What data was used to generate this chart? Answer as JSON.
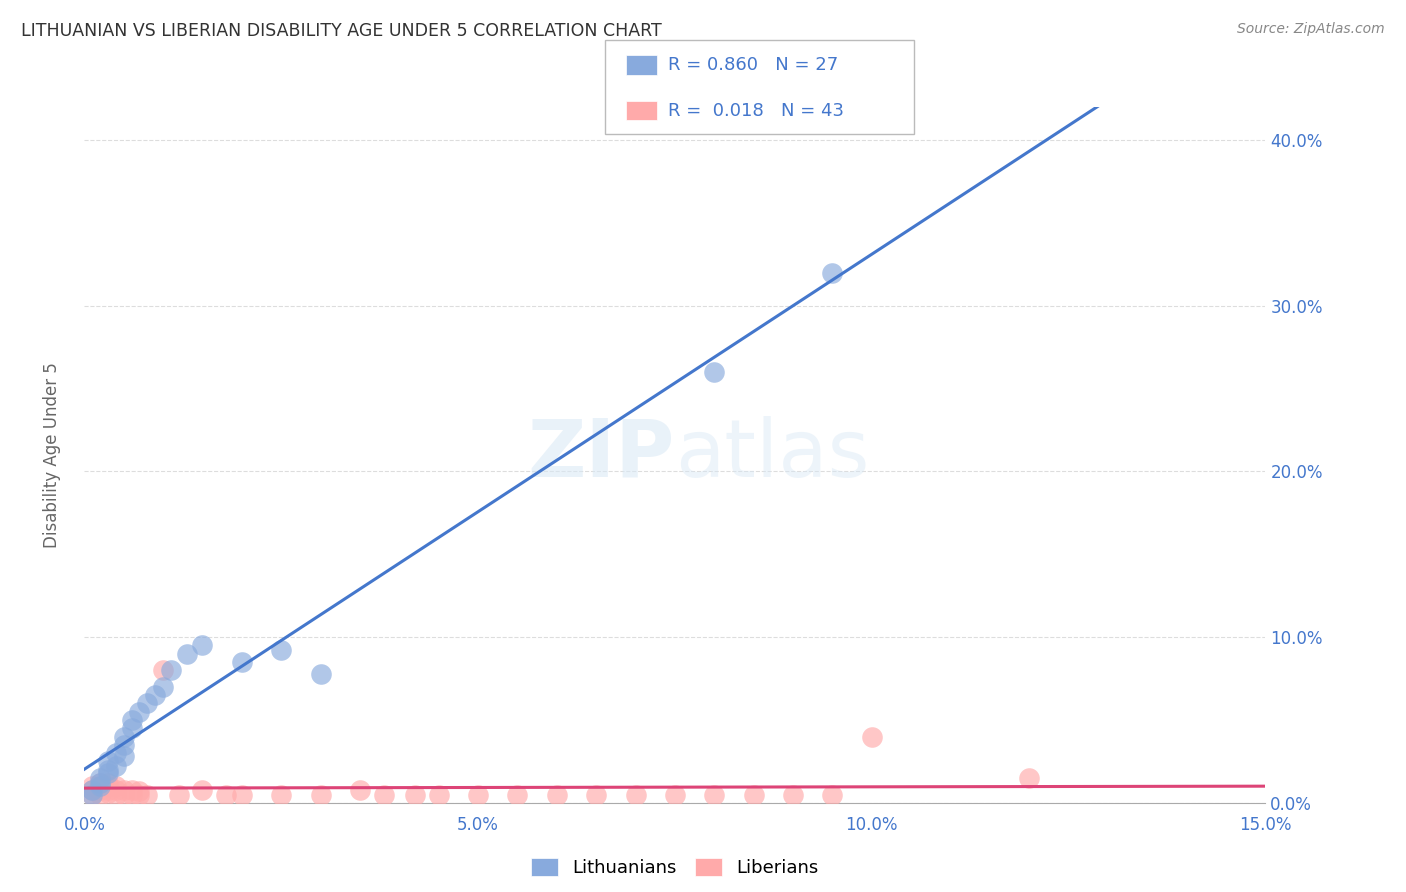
{
  "title": "LITHUANIAN VS LIBERIAN DISABILITY AGE UNDER 5 CORRELATION CHART",
  "source": "Source: ZipAtlas.com",
  "ylabel": "Disability Age Under 5",
  "xlim": [
    0.0,
    0.15
  ],
  "ylim": [
    0.0,
    0.42
  ],
  "background_color": "#ffffff",
  "grid_color": "#dddddd",
  "title_color": "#333333",
  "blue_color": "#88aadd",
  "pink_color": "#ffaaaa",
  "blue_line_color": "#4477cc",
  "pink_line_color": "#dd4477",
  "legend_r_blue": "0.860",
  "legend_n_blue": "27",
  "legend_r_pink": "0.018",
  "legend_n_pink": "43",
  "watermark": "ZIPatlas",
  "lit_x": [
    0.001,
    0.001,
    0.002,
    0.002,
    0.002,
    0.003,
    0.003,
    0.003,
    0.004,
    0.004,
    0.005,
    0.005,
    0.005,
    0.006,
    0.006,
    0.007,
    0.008,
    0.009,
    0.01,
    0.011,
    0.013,
    0.015,
    0.02,
    0.025,
    0.03,
    0.08,
    0.095
  ],
  "lit_y": [
    0.005,
    0.008,
    0.01,
    0.012,
    0.015,
    0.018,
    0.02,
    0.025,
    0.022,
    0.03,
    0.028,
    0.035,
    0.04,
    0.045,
    0.05,
    0.055,
    0.06,
    0.065,
    0.07,
    0.08,
    0.09,
    0.095,
    0.085,
    0.092,
    0.078,
    0.26,
    0.32
  ],
  "lib_x": [
    0.001,
    0.001,
    0.001,
    0.002,
    0.002,
    0.002,
    0.003,
    0.003,
    0.003,
    0.003,
    0.004,
    0.004,
    0.004,
    0.005,
    0.005,
    0.006,
    0.006,
    0.007,
    0.007,
    0.008,
    0.01,
    0.012,
    0.015,
    0.018,
    0.02,
    0.025,
    0.03,
    0.035,
    0.038,
    0.042,
    0.045,
    0.05,
    0.055,
    0.06,
    0.065,
    0.07,
    0.075,
    0.08,
    0.085,
    0.09,
    0.095,
    0.1,
    0.12
  ],
  "lib_y": [
    0.005,
    0.008,
    0.01,
    0.005,
    0.008,
    0.012,
    0.006,
    0.008,
    0.01,
    0.012,
    0.005,
    0.008,
    0.01,
    0.005,
    0.008,
    0.005,
    0.008,
    0.005,
    0.007,
    0.005,
    0.08,
    0.005,
    0.008,
    0.005,
    0.005,
    0.005,
    0.005,
    0.008,
    0.005,
    0.005,
    0.005,
    0.005,
    0.005,
    0.005,
    0.005,
    0.005,
    0.005,
    0.005,
    0.005,
    0.005,
    0.005,
    0.04,
    0.015
  ]
}
